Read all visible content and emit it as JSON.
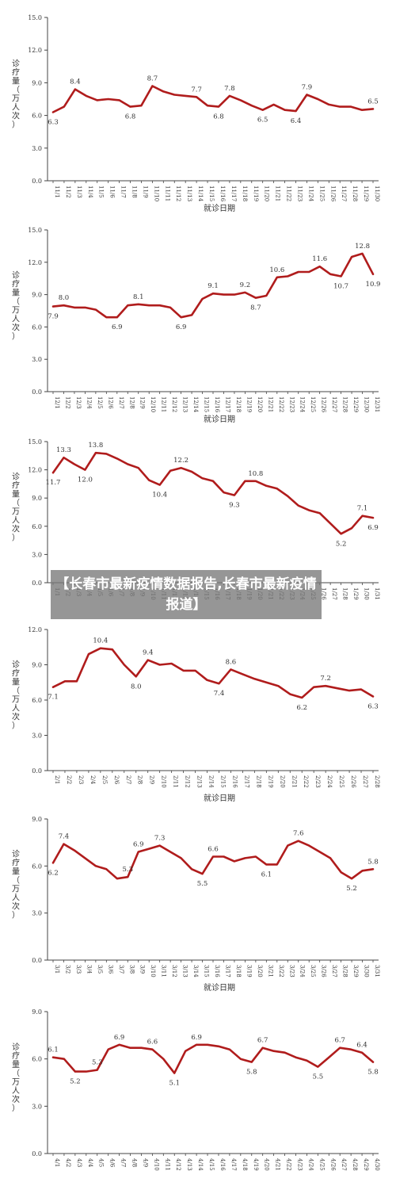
{
  "overlay_caption": "【长春市最新疫情数据报告,长春市最新疫情报道】",
  "colors": {
    "line": "#b01c1c",
    "axis": "#444444",
    "text": "#333333"
  },
  "chart_data": [
    {
      "type": "line",
      "ylabel": "诊疗量（万人次）",
      "xlabel": "就诊日期",
      "ylim": [
        0,
        15
      ],
      "yticks": [
        "0.0",
        "3.0",
        "6.0",
        "9.0",
        "12.0",
        "15.0"
      ],
      "categories": [
        "11/1",
        "11/2",
        "11/3",
        "11/4",
        "11/5",
        "11/6",
        "11/7",
        "11/8",
        "11/9",
        "11/10",
        "11/11",
        "11/12",
        "11/13",
        "11/14",
        "11/15",
        "11/16",
        "11/17",
        "11/18",
        "11/19",
        "11/20",
        "11/21",
        "11/22",
        "11/23",
        "11/24",
        "11/25",
        "11/26",
        "11/27",
        "11/28",
        "11/29",
        "11/30"
      ],
      "values": [
        6.3,
        6.8,
        8.4,
        7.8,
        7.4,
        7.5,
        7.4,
        6.8,
        6.9,
        8.7,
        8.2,
        7.9,
        7.8,
        7.7,
        6.9,
        6.8,
        7.8,
        7.4,
        6.9,
        6.5,
        7.0,
        6.5,
        6.4,
        7.9,
        7.5,
        7.0,
        6.8,
        6.8,
        6.5,
        6.6
      ],
      "labeled_points": [
        [
          0,
          "6.3"
        ],
        [
          2,
          "8.4"
        ],
        [
          7,
          "6.8"
        ],
        [
          9,
          "8.7"
        ],
        [
          13,
          "7.7"
        ],
        [
          15,
          "6.8"
        ],
        [
          16,
          "7.8"
        ],
        [
          19,
          "6.5"
        ],
        [
          22,
          "6.4"
        ],
        [
          23,
          "7.9"
        ],
        [
          29,
          "6.5"
        ]
      ]
    },
    {
      "type": "line",
      "ylabel": "诊疗量（万人次）",
      "xlabel": "就诊日期",
      "ylim": [
        0,
        15
      ],
      "yticks": [
        "0.0",
        "3.0",
        "6.0",
        "9.0",
        "12.0",
        "15.0"
      ],
      "categories": [
        "12/1",
        "12/2",
        "12/3",
        "12/4",
        "12/5",
        "12/6",
        "12/7",
        "12/8",
        "12/9",
        "12/10",
        "12/11",
        "12/12",
        "12/13",
        "12/14",
        "12/15",
        "12/16",
        "12/17",
        "12/18",
        "12/19",
        "12/20",
        "12/21",
        "12/22",
        "12/23",
        "12/24",
        "12/25",
        "12/26",
        "12/27",
        "12/28",
        "12/29",
        "12/30",
        "12/31"
      ],
      "values": [
        7.9,
        8.0,
        7.8,
        7.8,
        7.6,
        6.9,
        6.9,
        8.0,
        8.1,
        8.0,
        8.0,
        7.8,
        6.9,
        7.1,
        8.6,
        9.1,
        9.0,
        9.0,
        9.2,
        8.7,
        8.9,
        10.6,
        10.7,
        11.1,
        11.1,
        11.6,
        10.9,
        10.7,
        12.5,
        12.8,
        10.9
      ],
      "labeled_points": [
        [
          0,
          "7.9"
        ],
        [
          1,
          "8.0"
        ],
        [
          6,
          "6.9"
        ],
        [
          8,
          "8.1"
        ],
        [
          12,
          "6.9"
        ],
        [
          15,
          "9.1"
        ],
        [
          18,
          "9.2"
        ],
        [
          19,
          "8.7"
        ],
        [
          21,
          "10.6"
        ],
        [
          25,
          "11.6"
        ],
        [
          27,
          "10.7"
        ],
        [
          29,
          "12.8"
        ],
        [
          30,
          "10.9"
        ]
      ]
    },
    {
      "type": "line",
      "ylabel": "诊疗量（万人次）",
      "xlabel": "",
      "ylim": [
        0,
        15
      ],
      "yticks": [
        "0.0",
        "3.0",
        "6.0",
        "9.0",
        "12.0",
        "15.0"
      ],
      "categories": [
        "1/1",
        "1/2",
        "1/3",
        "1/4",
        "1/5",
        "1/6",
        "1/7",
        "1/8",
        "1/9",
        "1/10",
        "1/11",
        "1/12",
        "1/13",
        "1/14",
        "1/15",
        "1/16",
        "1/17",
        "1/18",
        "1/19",
        "1/20",
        "1/21",
        "1/22",
        "1/23",
        "1/24",
        "1/25",
        "1/26",
        "1/27",
        "1/28",
        "1/29",
        "1/30",
        "1/31"
      ],
      "values": [
        11.7,
        13.3,
        12.6,
        12.0,
        13.8,
        13.7,
        13.2,
        12.6,
        12.2,
        10.9,
        10.4,
        11.9,
        12.2,
        11.8,
        11.1,
        10.8,
        9.6,
        9.3,
        10.8,
        10.8,
        10.3,
        10.0,
        9.2,
        8.2,
        7.7,
        7.4,
        6.3,
        5.2,
        5.8,
        7.1,
        6.9
      ],
      "labeled_points": [
        [
          0,
          "11.7"
        ],
        [
          1,
          "13.3"
        ],
        [
          3,
          "12.0"
        ],
        [
          4,
          "13.8"
        ],
        [
          10,
          "10.4"
        ],
        [
          12,
          "12.2"
        ],
        [
          17,
          "9.3"
        ],
        [
          19,
          "10.8"
        ],
        [
          27,
          "5.2"
        ],
        [
          29,
          "7.1"
        ],
        [
          30,
          "6.9"
        ]
      ]
    },
    {
      "type": "line",
      "ylabel": "诊疗量（万人次）",
      "xlabel": "就诊日期",
      "ylim": [
        0,
        12
      ],
      "yticks": [
        "0.0",
        "3.0",
        "6.0",
        "9.0",
        "12.0"
      ],
      "categories": [
        "2/1",
        "2/2",
        "2/3",
        "2/4",
        "2/5",
        "2/6",
        "2/7",
        "2/8",
        "2/9",
        "2/10",
        "2/11",
        "2/12",
        "2/13",
        "2/14",
        "2/15",
        "2/16",
        "2/17",
        "2/18",
        "2/19",
        "2/20",
        "2/21",
        "2/22",
        "2/23",
        "2/24",
        "2/25",
        "2/26",
        "2/27",
        "2/28"
      ],
      "values": [
        7.1,
        7.6,
        7.6,
        9.9,
        10.4,
        10.3,
        9.0,
        8.0,
        9.4,
        9.0,
        9.1,
        8.5,
        8.5,
        7.7,
        7.4,
        8.6,
        8.2,
        7.8,
        7.5,
        7.2,
        6.5,
        6.2,
        7.1,
        7.2,
        7.0,
        6.8,
        6.9,
        6.3
      ],
      "labeled_points": [
        [
          0,
          "7.1"
        ],
        [
          4,
          "10.4"
        ],
        [
          7,
          "8.0"
        ],
        [
          8,
          "9.4"
        ],
        [
          14,
          "7.4"
        ],
        [
          15,
          "8.6"
        ],
        [
          21,
          "6.2"
        ],
        [
          23,
          "7.2"
        ],
        [
          27,
          "6.3"
        ]
      ]
    },
    {
      "type": "line",
      "ylabel": "诊疗量（万人次）",
      "xlabel": "就诊日期",
      "ylim": [
        0,
        9
      ],
      "yticks": [
        "0.0",
        "3.0",
        "6.0",
        "9.0"
      ],
      "categories": [
        "3/1",
        "3/2",
        "3/3",
        "3/4",
        "3/5",
        "3/6",
        "3/7",
        "3/8",
        "3/9",
        "3/10",
        "3/11",
        "3/12",
        "3/13",
        "3/14",
        "3/15",
        "3/16",
        "3/17",
        "3/18",
        "3/19",
        "3/20",
        "3/21",
        "3/22",
        "3/23",
        "3/24",
        "3/25",
        "3/26",
        "3/27",
        "3/28",
        "3/29",
        "3/30",
        "3/31"
      ],
      "values": [
        6.2,
        7.4,
        7.0,
        6.5,
        6.0,
        5.8,
        5.2,
        5.3,
        6.9,
        7.1,
        7.3,
        6.9,
        6.5,
        5.8,
        5.5,
        6.6,
        6.6,
        6.3,
        6.5,
        6.6,
        6.1,
        6.1,
        7.3,
        7.6,
        7.3,
        6.9,
        6.5,
        5.6,
        5.2,
        5.7,
        5.8
      ],
      "labeled_points": [
        [
          0,
          "6.2"
        ],
        [
          1,
          "7.4"
        ],
        [
          7,
          "5.3"
        ],
        [
          8,
          "6.9"
        ],
        [
          10,
          "7.3"
        ],
        [
          14,
          "5.5"
        ],
        [
          15,
          "6.6"
        ],
        [
          20,
          "6.1"
        ],
        [
          23,
          "7.6"
        ],
        [
          28,
          "5.2"
        ],
        [
          30,
          "5.8"
        ]
      ]
    },
    {
      "type": "line",
      "ylabel": "诊疗量（万人次）",
      "xlabel": "",
      "ylim": [
        0,
        9
      ],
      "yticks": [
        "0.0",
        "3.0",
        "6.0",
        "9.0"
      ],
      "categories": [
        "4/1",
        "4/2",
        "4/3",
        "4/4",
        "4/5",
        "4/6",
        "4/7",
        "4/8",
        "4/9",
        "4/10",
        "4/11",
        "4/12",
        "4/13",
        "4/14",
        "4/15",
        "4/16",
        "4/17",
        "4/18",
        "4/19",
        "4/20",
        "4/21",
        "4/22",
        "4/23",
        "4/24",
        "4/25",
        "4/26",
        "4/27",
        "4/28",
        "4/29",
        "4/30"
      ],
      "values": [
        6.1,
        6.0,
        5.2,
        5.2,
        5.3,
        6.6,
        6.9,
        6.7,
        6.7,
        6.6,
        6.0,
        5.1,
        6.5,
        6.9,
        6.9,
        6.8,
        6.6,
        6.0,
        5.8,
        6.7,
        6.5,
        6.4,
        6.1,
        5.9,
        5.5,
        6.1,
        6.7,
        6.6,
        6.4,
        5.8
      ],
      "labeled_points": [
        [
          0,
          "6.1"
        ],
        [
          2,
          "5.2"
        ],
        [
          4,
          "5.3"
        ],
        [
          6,
          "6.9"
        ],
        [
          9,
          "6.6"
        ],
        [
          11,
          "5.1"
        ],
        [
          13,
          "6.9"
        ],
        [
          18,
          "5.8"
        ],
        [
          19,
          "6.7"
        ],
        [
          24,
          "5.5"
        ],
        [
          26,
          "6.7"
        ],
        [
          28,
          "6.4"
        ],
        [
          29,
          "5.8"
        ]
      ]
    }
  ]
}
